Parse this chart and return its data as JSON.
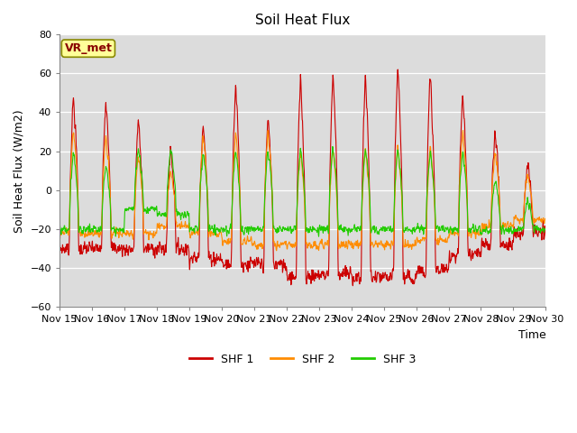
{
  "title": "Soil Heat Flux",
  "ylabel": "Soil Heat Flux (W/m2)",
  "xlabel": "Time",
  "ylim": [
    -60,
    80
  ],
  "yticks": [
    -60,
    -40,
    -20,
    0,
    20,
    40,
    60,
    80
  ],
  "background_color": "#dcdcdc",
  "fig_background": "#ffffff",
  "line_colors": [
    "#cc0000",
    "#ff8c00",
    "#22cc00"
  ],
  "line_labels": [
    "SHF 1",
    "SHF 2",
    "SHF 3"
  ],
  "line_width": 0.8,
  "watermark_text": "VR_met",
  "watermark_facecolor": "#ffff99",
  "watermark_edgecolor": "#888800",
  "watermark_textcolor": "#880000",
  "xtick_labels": [
    "Nov 15",
    "Nov 16",
    "Nov 17",
    "Nov 18",
    "Nov 19",
    "Nov 20",
    "Nov 21",
    "Nov 22",
    "Nov 23",
    "Nov 24",
    "Nov 25",
    "Nov 26",
    "Nov 27",
    "Nov 28",
    "Nov 29",
    "Nov 30"
  ],
  "num_days": 15,
  "points_per_day": 96,
  "shf1_day_peaks": [
    48,
    48,
    36,
    22,
    36,
    55,
    38,
    57,
    61,
    59,
    64,
    59,
    50,
    32,
    15
  ],
  "shf1_night_vals": [
    -30,
    -30,
    -30,
    -30,
    -35,
    -38,
    -38,
    -44,
    -43,
    -45,
    -45,
    -41,
    -33,
    -28,
    -22
  ],
  "shf2_day_peaks": [
    32,
    28,
    18,
    10,
    28,
    30,
    32,
    20,
    22,
    22,
    22,
    22,
    30,
    20,
    8
  ],
  "shf2_night_vals": [
    -22,
    -22,
    -22,
    -18,
    -22,
    -26,
    -28,
    -28,
    -28,
    -28,
    -28,
    -26,
    -22,
    -18,
    -15
  ],
  "shf3_day_peaks": [
    20,
    13,
    22,
    22,
    20,
    20,
    20,
    21,
    22,
    22,
    21,
    20,
    20,
    5,
    -5
  ],
  "shf3_night_vals": [
    -20,
    -20,
    -10,
    -12,
    -20,
    -20,
    -20,
    -20,
    -20,
    -20,
    -20,
    -20,
    -20,
    -20,
    -20
  ]
}
